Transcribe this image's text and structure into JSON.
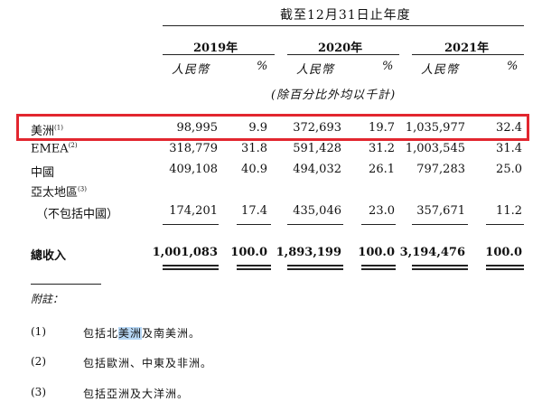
{
  "header": {
    "title": "截至12月31日止年度",
    "years": [
      "2019年",
      "2020年",
      "2021年"
    ],
    "currency_label": "人民幣",
    "percent_label": "%",
    "note": "(除百分比外均以千計)"
  },
  "rows": [
    {
      "label": "美洲",
      "sup": "(1)",
      "v2019": "98,995",
      "p2019": "9.9",
      "v2020": "372,693",
      "p2020": "19.7",
      "v2021": "1,035,977",
      "p2021": "32.4",
      "highlighted": true
    },
    {
      "label": "EMEA",
      "sup": "(2)",
      "v2019": "318,779",
      "p2019": "31.8",
      "v2020": "591,428",
      "p2020": "31.2",
      "v2021": "1,003,545",
      "p2021": "31.4"
    },
    {
      "label": "中國",
      "sup": "",
      "v2019": "409,108",
      "p2019": "40.9",
      "v2020": "494,032",
      "p2020": "26.1",
      "v2021": "797,283",
      "p2021": "25.0"
    },
    {
      "label": "亞太地區",
      "sup": "(3)",
      "sublabel": "（不包括中國）",
      "v2019": "174,201",
      "p2019": "17.4",
      "v2020": "435,046",
      "p2020": "23.0",
      "v2021": "357,671",
      "p2021": "11.2"
    }
  ],
  "total": {
    "label": "總收入",
    "v2019": "1,001,083",
    "p2019": "100.0",
    "v2020": "1,893,199",
    "p2020": "100.0",
    "v2021": "3,194,476",
    "p2021": "100.0"
  },
  "footnotes": {
    "heading": "附註：",
    "items": [
      {
        "num": "(1)",
        "text_before": "包括北",
        "text_selected": "美洲",
        "text_after": "及南美洲。"
      },
      {
        "num": "(2)",
        "text": "包括歐洲、中東及非洲。"
      },
      {
        "num": "(3)",
        "text": "包括亞洲及大洋洲。"
      }
    ]
  },
  "colors": {
    "highlight_border": "#e2262f",
    "text_selection": "#b9d9f7"
  }
}
